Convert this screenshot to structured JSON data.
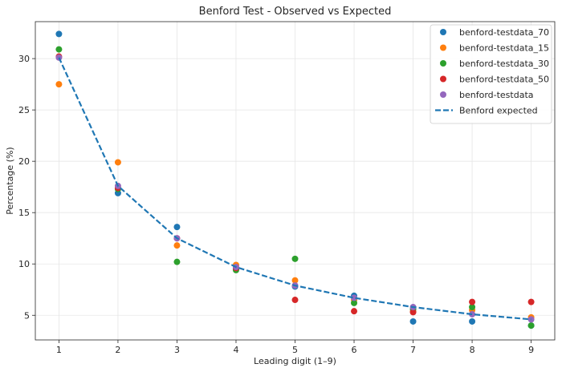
{
  "chart_data": {
    "type": "scatter",
    "title": "Benford Test - Observed vs Expected",
    "xlabel": "Leading digit (1–9)",
    "ylabel": "Percentage (%)",
    "x": [
      1,
      2,
      3,
      4,
      5,
      6,
      7,
      8,
      9
    ],
    "xlim": [
      0.6,
      9.4
    ],
    "ylim": [
      2.6,
      33.6
    ],
    "xticks": [
      1,
      2,
      3,
      4,
      5,
      6,
      7,
      8,
      9
    ],
    "yticks": [
      5,
      10,
      15,
      20,
      25,
      30
    ],
    "grid": true,
    "legend_position": "top-right",
    "series": [
      {
        "name": "benford-testdata_70",
        "color": "#1f77b4",
        "values": [
          32.4,
          16.9,
          13.6,
          9.5,
          7.8,
          6.9,
          4.4,
          4.4,
          4.0
        ]
      },
      {
        "name": "benford-testdata_15",
        "color": "#ff7f0e",
        "values": [
          27.5,
          19.9,
          11.8,
          9.9,
          8.4,
          6.5,
          5.4,
          5.5,
          4.8
        ]
      },
      {
        "name": "benford-testdata_30",
        "color": "#2ca02c",
        "values": [
          30.9,
          17.3,
          10.2,
          9.4,
          10.5,
          6.2,
          5.6,
          5.8,
          4.0
        ]
      },
      {
        "name": "benford-testdata_50",
        "color": "#d62728",
        "values": [
          30.2,
          17.4,
          12.5,
          9.6,
          6.5,
          5.4,
          5.3,
          6.3,
          6.3
        ]
      },
      {
        "name": "benford-testdata",
        "color": "#9467bd",
        "values": [
          30.1,
          17.6,
          12.5,
          9.7,
          7.9,
          6.7,
          5.8,
          5.1,
          4.6
        ]
      }
    ],
    "expected": {
      "name": "Benford expected",
      "color": "#1f77b4",
      "style": "dashed",
      "values": [
        30.1,
        17.6,
        12.5,
        9.7,
        7.9,
        6.7,
        5.8,
        5.1,
        4.6
      ]
    }
  }
}
